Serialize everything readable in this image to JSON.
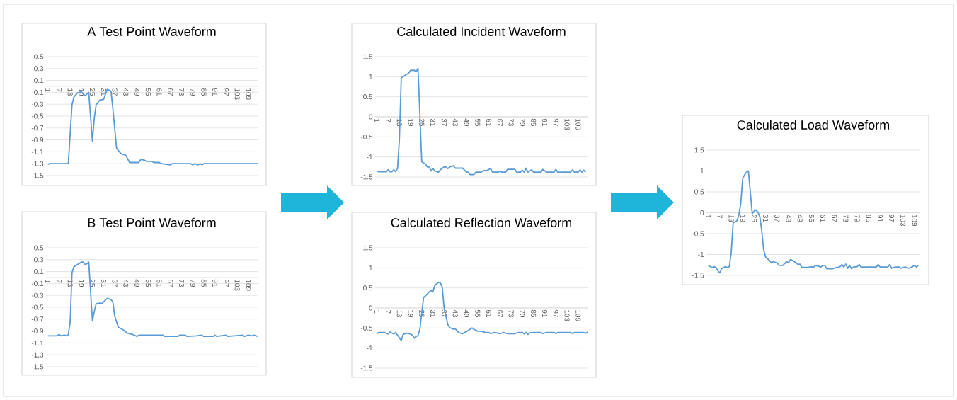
{
  "chart_data": [
    {
      "type": "line",
      "title": "A Test Point Waveform",
      "color": "#5b9bd5",
      "grid": "y",
      "xlim": [
        0,
        114
      ],
      "xticks": [
        1,
        7,
        13,
        19,
        25,
        31,
        37,
        43,
        49,
        55,
        61,
        67,
        73,
        79,
        85,
        91,
        97,
        103,
        109
      ],
      "ylim": [
        -1.5,
        0.5
      ],
      "yticks": [
        -1.5,
        -1.3,
        -1.1,
        -0.9,
        -0.7,
        -0.5,
        -0.3,
        -0.1,
        0.1,
        0.3,
        0.5
      ],
      "x": [
        1,
        2,
        12,
        14,
        15,
        17,
        19,
        21,
        23,
        25,
        26,
        27,
        29,
        31,
        33,
        35,
        36,
        38,
        40,
        41,
        43,
        45,
        50,
        51,
        53,
        54,
        57,
        58,
        61,
        62,
        67,
        68,
        78,
        79,
        80,
        82,
        83,
        84,
        85,
        114
      ],
      "values": [
        -1.31,
        -1.3,
        -1.3,
        -0.31,
        -0.18,
        -0.11,
        -0.09,
        -0.16,
        -0.1,
        -0.92,
        -0.53,
        -0.31,
        -0.23,
        -0.22,
        -0.05,
        -0.08,
        -0.37,
        -1.04,
        -1.12,
        -1.14,
        -1.16,
        -1.28,
        -1.28,
        -1.23,
        -1.24,
        -1.26,
        -1.26,
        -1.28,
        -1.28,
        -1.3,
        -1.32,
        -1.3,
        -1.3,
        -1.32,
        -1.3,
        -1.32,
        -1.3,
        -1.32,
        -1.3,
        -1.3
      ]
    },
    {
      "type": "line",
      "title": "B Test Point Waveform",
      "color": "#5b9bd5",
      "grid": "y",
      "xlim": [
        0,
        114
      ],
      "xticks": [
        1,
        7,
        13,
        19,
        25,
        31,
        37,
        43,
        49,
        55,
        61,
        67,
        73,
        79,
        85,
        91,
        97,
        103,
        109
      ],
      "ylim": [
        -1.5,
        0.5
      ],
      "yticks": [
        -1.5,
        -1.3,
        -1.1,
        -0.9,
        -0.7,
        -0.5,
        -0.3,
        -0.1,
        0.1,
        0.3,
        0.5
      ],
      "x": [
        1,
        6,
        7,
        8,
        10,
        11,
        12,
        13,
        14,
        15,
        17,
        19,
        20,
        21,
        22,
        23,
        25,
        26,
        27,
        29,
        30,
        31,
        33,
        35,
        36,
        37,
        39,
        41,
        42,
        44,
        46,
        49,
        50,
        63,
        64,
        71,
        72,
        75,
        76,
        81,
        84,
        85,
        90,
        91,
        92,
        97,
        98,
        106,
        107,
        109,
        111,
        112,
        114
      ],
      "values": [
        -0.98,
        -0.98,
        -0.96,
        -0.98,
        -0.97,
        -0.98,
        -0.96,
        -0.75,
        0.08,
        0.18,
        0.22,
        0.26,
        0.26,
        0.22,
        0.23,
        0.26,
        -0.73,
        -0.57,
        -0.44,
        -0.43,
        -0.44,
        -0.41,
        -0.35,
        -0.37,
        -0.41,
        -0.65,
        -0.84,
        -0.87,
        -0.89,
        -0.94,
        -0.95,
        -0.99,
        -0.97,
        -0.97,
        -0.99,
        -0.99,
        -0.97,
        -0.97,
        -0.99,
        -0.98,
        -0.97,
        -0.99,
        -0.99,
        -0.97,
        -0.99,
        -0.97,
        -0.99,
        -0.97,
        -0.99,
        -0.97,
        -0.98,
        -0.97,
        -0.99
      ]
    },
    {
      "type": "line",
      "title": "Calculated Incident Waveform",
      "color": "#5b9bd5",
      "grid": "y",
      "xlim": [
        0,
        114
      ],
      "xticks": [
        1,
        7,
        13,
        19,
        25,
        31,
        37,
        43,
        49,
        55,
        61,
        67,
        73,
        79,
        85,
        91,
        97,
        103,
        109
      ],
      "ylim": [
        -1.5,
        1.5
      ],
      "yticks": [
        -1.5,
        -1,
        -0.5,
        0,
        0.5,
        1,
        1.5
      ],
      "x": [
        1,
        2,
        6,
        7,
        8,
        9,
        10,
        11,
        12,
        13,
        14,
        16,
        18,
        19,
        21,
        22,
        23,
        25,
        27,
        28,
        29,
        30,
        31,
        32,
        34,
        35,
        37,
        38,
        39,
        40,
        42,
        43,
        47,
        49,
        50,
        51,
        53,
        54,
        57,
        58,
        60,
        62,
        63,
        66,
        67,
        68,
        70,
        71,
        75,
        76,
        78,
        79,
        80,
        81,
        82,
        84,
        85,
        89,
        90,
        92,
        96,
        97,
        98,
        105,
        106,
        107,
        109,
        110,
        111,
        112,
        113
      ],
      "values": [
        -1.35,
        -1.37,
        -1.37,
        -1.32,
        -1.37,
        -1.37,
        -1.32,
        -1.37,
        -1.29,
        -0.56,
        0.97,
        1.03,
        1.09,
        1.16,
        1.16,
        1.12,
        1.21,
        -1.12,
        -1.18,
        -1.25,
        -1.25,
        -1.35,
        -1.29,
        -1.35,
        -1.38,
        -1.32,
        -1.25,
        -1.25,
        -1.29,
        -1.25,
        -1.22,
        -1.28,
        -1.28,
        -1.38,
        -1.38,
        -1.44,
        -1.44,
        -1.38,
        -1.38,
        -1.34,
        -1.34,
        -1.29,
        -1.38,
        -1.38,
        -1.35,
        -1.38,
        -1.38,
        -1.31,
        -1.31,
        -1.38,
        -1.38,
        -1.33,
        -1.38,
        -1.28,
        -1.38,
        -1.32,
        -1.38,
        -1.38,
        -1.31,
        -1.38,
        -1.38,
        -1.31,
        -1.38,
        -1.38,
        -1.32,
        -1.38,
        -1.38,
        -1.32,
        -1.38,
        -1.33,
        -1.38
      ]
    },
    {
      "type": "line",
      "title": "Calculated Reflection Waveform",
      "color": "#5b9bd5",
      "grid": "y",
      "xlim": [
        0,
        114
      ],
      "xticks": [
        1,
        7,
        13,
        19,
        25,
        31,
        37,
        43,
        49,
        55,
        61,
        67,
        73,
        79,
        85,
        91,
        97,
        103,
        109
      ],
      "ylim": [
        -1.5,
        1.5
      ],
      "yticks": [
        -1.5,
        -1,
        -0.5,
        0,
        0.5,
        1,
        1.5
      ],
      "x": [
        1,
        2,
        5,
        7,
        8,
        10,
        11,
        12,
        14,
        15,
        17,
        19,
        20,
        21,
        22,
        23,
        24,
        25,
        26,
        28,
        29,
        30,
        31,
        32,
        34,
        35,
        36,
        37,
        39,
        40,
        42,
        43,
        45,
        47,
        49,
        50,
        52,
        53,
        55,
        57,
        59,
        61,
        62,
        64,
        67,
        69,
        71,
        75,
        77,
        79,
        80,
        81,
        82,
        83,
        85,
        89,
        90,
        92,
        96,
        97,
        98,
        105,
        106,
        107,
        112,
        113,
        114
      ],
      "values": [
        -0.64,
        -0.61,
        -0.61,
        -0.65,
        -0.6,
        -0.65,
        -0.61,
        -0.68,
        -0.81,
        -0.66,
        -0.63,
        -0.65,
        -0.68,
        -0.75,
        -0.71,
        -0.69,
        -0.53,
        -0.12,
        0.26,
        0.35,
        0.4,
        0.44,
        0.4,
        0.56,
        0.64,
        0.62,
        0.52,
        0,
        -0.41,
        -0.49,
        -0.53,
        -0.52,
        -0.62,
        -0.64,
        -0.59,
        -0.56,
        -0.5,
        -0.53,
        -0.58,
        -0.58,
        -0.61,
        -0.61,
        -0.64,
        -0.61,
        -0.64,
        -0.61,
        -0.64,
        -0.64,
        -0.61,
        -0.61,
        -0.65,
        -0.61,
        -0.66,
        -0.62,
        -0.61,
        -0.61,
        -0.64,
        -0.61,
        -0.61,
        -0.64,
        -0.61,
        -0.61,
        -0.64,
        -0.61,
        -0.61,
        -0.63,
        -0.6
      ]
    },
    {
      "type": "line",
      "title": "Calculated Load Waveform",
      "color": "#5b9bd5",
      "grid": "y",
      "xlim": [
        0,
        112
      ],
      "xticks": [
        1,
        7,
        13,
        19,
        25,
        31,
        37,
        43,
        49,
        55,
        61,
        67,
        73,
        79,
        85,
        91,
        97,
        103,
        109
      ],
      "ylim": [
        -1.5,
        1.5
      ],
      "yticks": [
        -1.5,
        -1,
        -0.5,
        0,
        0.5,
        1,
        1.5
      ],
      "x": [
        1,
        2,
        3,
        4,
        5,
        6,
        7,
        8,
        9,
        10,
        11,
        12,
        13,
        14,
        15,
        16,
        17,
        18,
        19,
        20,
        21,
        22,
        24,
        25,
        26,
        27,
        28,
        29,
        30,
        31,
        33,
        34,
        35,
        37,
        38,
        40,
        42,
        43,
        44,
        45,
        47,
        48,
        49,
        50,
        53,
        55,
        56,
        57,
        58,
        60,
        61,
        62,
        63,
        66,
        68,
        69,
        70,
        71,
        72,
        73,
        74,
        75,
        76,
        77,
        79,
        80,
        81,
        89,
        90,
        91,
        95,
        96,
        97,
        99,
        101,
        102,
        104,
        105,
        106,
        108,
        109,
        110,
        111
      ],
      "values": [
        -1.26,
        -1.29,
        -1.31,
        -1.29,
        -1.31,
        -1.39,
        -1.44,
        -1.34,
        -1.31,
        -1.29,
        -1.31,
        -1.29,
        -0.95,
        -0.24,
        -0.22,
        -0.19,
        -0.05,
        0.23,
        0.82,
        0.91,
        0.97,
        1,
        -0.02,
        0.04,
        0.07,
        0.01,
        -0.1,
        -0.44,
        -0.89,
        -1.06,
        -1.14,
        -1.2,
        -1.17,
        -1.2,
        -1.26,
        -1.26,
        -1.17,
        -1.2,
        -1.12,
        -1.14,
        -1.2,
        -1.24,
        -1.23,
        -1.31,
        -1.31,
        -1.29,
        -1.31,
        -1.27,
        -1.27,
        -1.3,
        -1.26,
        -1.26,
        -1.34,
        -1.34,
        -1.31,
        -1.31,
        -1.29,
        -1.24,
        -1.3,
        -1.23,
        -1.33,
        -1.26,
        -1.34,
        -1.3,
        -1.29,
        -1.24,
        -1.3,
        -1.3,
        -1.24,
        -1.3,
        -1.3,
        -1.24,
        -1.33,
        -1.3,
        -1.3,
        -1.33,
        -1.3,
        -1.31,
        -1.33,
        -1.29,
        -1.26,
        -1.3,
        -1.26
      ]
    }
  ]
}
